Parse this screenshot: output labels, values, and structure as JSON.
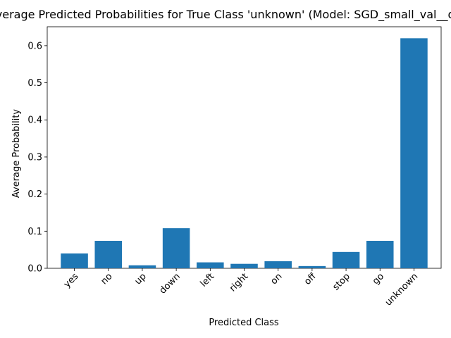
{
  "chart_data": {
    "type": "bar",
    "title": "Average Predicted Probabilities for True Class 'unknown' (Model: SGD_small_val__dropout)",
    "xlabel": "Predicted Class",
    "ylabel": "Average Probability",
    "categories": [
      "yes",
      "no",
      "up",
      "down",
      "left",
      "right",
      "on",
      "off",
      "stop",
      "go",
      "unknown"
    ],
    "values": [
      0.04,
      0.074,
      0.008,
      0.108,
      0.016,
      0.012,
      0.019,
      0.006,
      0.044,
      0.074,
      0.62
    ],
    "ylim": [
      0,
      0.651
    ],
    "yticks": [
      0.0,
      0.1,
      0.2,
      0.3,
      0.4,
      0.5,
      0.6
    ],
    "ytick_labels": [
      "0.0",
      "0.1",
      "0.2",
      "0.3",
      "0.4",
      "0.5",
      "0.6"
    ],
    "grid": false,
    "bar_color": "#1f77b4"
  }
}
